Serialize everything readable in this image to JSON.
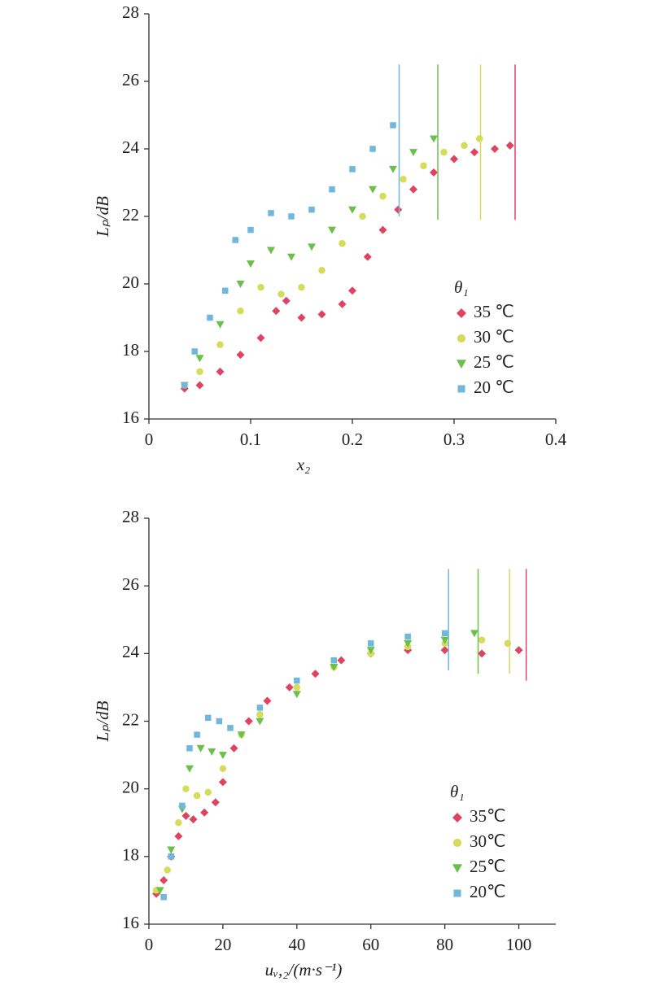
{
  "chart_data": [
    {
      "type": "scatter",
      "xlabel": "x₂",
      "ylabel": "Lₚ/dB",
      "legend_title": "θ₁",
      "xlim": [
        0,
        0.4
      ],
      "xticks": [
        0,
        0.1,
        0.2,
        0.3,
        0.4
      ],
      "ylim": [
        16,
        28
      ],
      "yticks": [
        16,
        18,
        20,
        22,
        24,
        26,
        28
      ],
      "legend": "right",
      "series": [
        {
          "name": "35 ℃",
          "color": "#e0425f",
          "marker": "diamond",
          "limit": {
            "x": 0.36,
            "y": [
              21.9,
              26.5
            ]
          },
          "x": [
            0.035,
            0.05,
            0.07,
            0.09,
            0.11,
            0.125,
            0.135,
            0.15,
            0.17,
            0.19,
            0.2,
            0.215,
            0.23,
            0.245,
            0.26,
            0.28,
            0.3,
            0.32,
            0.34,
            0.355
          ],
          "y": [
            16.9,
            17.0,
            17.4,
            17.9,
            18.4,
            19.2,
            19.5,
            19.0,
            19.1,
            19.4,
            19.8,
            20.8,
            21.6,
            22.2,
            22.8,
            23.3,
            23.7,
            23.9,
            24.0,
            24.1
          ]
        },
        {
          "name": "30 ℃",
          "color": "#d4dc5a",
          "marker": "circle",
          "limit": {
            "x": 0.326,
            "y": [
              21.9,
              26.5
            ]
          },
          "x": [
            0.035,
            0.05,
            0.07,
            0.09,
            0.11,
            0.13,
            0.15,
            0.17,
            0.19,
            0.21,
            0.23,
            0.25,
            0.27,
            0.29,
            0.31,
            0.325
          ],
          "y": [
            17.0,
            17.4,
            18.2,
            19.2,
            19.9,
            19.7,
            19.9,
            20.4,
            21.2,
            22.0,
            22.6,
            23.1,
            23.5,
            23.9,
            24.1,
            24.3
          ]
        },
        {
          "name": "25 ℃",
          "color": "#6cbf4a",
          "marker": "triangle",
          "limit": {
            "x": 0.284,
            "y": [
              21.9,
              26.5
            ]
          },
          "x": [
            0.035,
            0.05,
            0.07,
            0.09,
            0.1,
            0.12,
            0.14,
            0.16,
            0.18,
            0.2,
            0.22,
            0.24,
            0.26,
            0.28
          ],
          "y": [
            17.0,
            17.8,
            18.8,
            20.0,
            20.6,
            21.0,
            20.8,
            21.1,
            21.6,
            22.2,
            22.8,
            23.4,
            23.9,
            24.3
          ]
        },
        {
          "name": "20 ℃",
          "color": "#6fb8dc",
          "marker": "square",
          "limit": {
            "x": 0.246,
            "y": [
              22.0,
              26.5
            ]
          },
          "x": [
            0.035,
            0.045,
            0.06,
            0.075,
            0.085,
            0.1,
            0.12,
            0.14,
            0.16,
            0.18,
            0.2,
            0.22,
            0.24
          ],
          "y": [
            17.0,
            18.0,
            19.0,
            19.8,
            21.3,
            21.6,
            22.1,
            22.0,
            22.2,
            22.8,
            23.4,
            24.0,
            24.7
          ]
        }
      ]
    },
    {
      "type": "scatter",
      "xlabel": "uᵥ,₂/(m·s⁻¹)",
      "ylabel": "Lₚ/dB",
      "legend_title": "θ₁",
      "xlim": [
        0,
        110
      ],
      "xticks": [
        0,
        20,
        40,
        60,
        80,
        100
      ],
      "ylim": [
        16,
        28
      ],
      "yticks": [
        16,
        18,
        20,
        22,
        24,
        26,
        28
      ],
      "legend": "right",
      "series": [
        {
          "name": "35℃",
          "color": "#e0425f",
          "marker": "diamond",
          "limit": {
            "x": 102,
            "y": [
              23.2,
              26.5
            ]
          },
          "x": [
            2,
            4,
            6,
            8,
            10,
            12,
            15,
            18,
            20,
            23,
            27,
            32,
            38,
            45,
            52,
            60,
            70,
            80,
            90,
            100
          ],
          "y": [
            16.9,
            17.3,
            18.0,
            18.6,
            19.2,
            19.1,
            19.3,
            19.6,
            20.2,
            21.2,
            22.0,
            22.6,
            23.0,
            23.4,
            23.8,
            24.0,
            24.1,
            24.1,
            24.0,
            24.1
          ]
        },
        {
          "name": "30℃",
          "color": "#d4dc5a",
          "marker": "circle",
          "limit": {
            "x": 97.5,
            "y": [
              23.4,
              26.5
            ]
          },
          "x": [
            2,
            5,
            8,
            10,
            13,
            16,
            20,
            25,
            30,
            40,
            50,
            60,
            70,
            80,
            90,
            97
          ],
          "y": [
            17.0,
            17.6,
            19.0,
            20.0,
            19.8,
            19.9,
            20.6,
            21.6,
            22.2,
            23.0,
            23.6,
            24.0,
            24.2,
            24.3,
            24.4,
            24.3
          ]
        },
        {
          "name": "25℃",
          "color": "#6cbf4a",
          "marker": "triangle",
          "limit": {
            "x": 89,
            "y": [
              23.4,
              26.5
            ]
          },
          "x": [
            3,
            6,
            9,
            11,
            14,
            17,
            20,
            25,
            30,
            40,
            50,
            60,
            70,
            80,
            88
          ],
          "y": [
            17.0,
            18.2,
            19.4,
            20.6,
            21.2,
            21.1,
            21.0,
            21.6,
            22.0,
            22.8,
            23.6,
            24.1,
            24.3,
            24.4,
            24.6
          ]
        },
        {
          "name": "20℃",
          "color": "#6fb8dc",
          "marker": "square",
          "limit": {
            "x": 81,
            "y": [
              23.5,
              26.5
            ]
          },
          "x": [
            4,
            6,
            9,
            11,
            13,
            16,
            19,
            22,
            30,
            40,
            50,
            60,
            70,
            80
          ],
          "y": [
            16.8,
            18.0,
            19.5,
            21.2,
            21.6,
            22.1,
            22.0,
            21.8,
            22.4,
            23.2,
            23.8,
            24.3,
            24.5,
            24.6
          ]
        }
      ]
    }
  ]
}
